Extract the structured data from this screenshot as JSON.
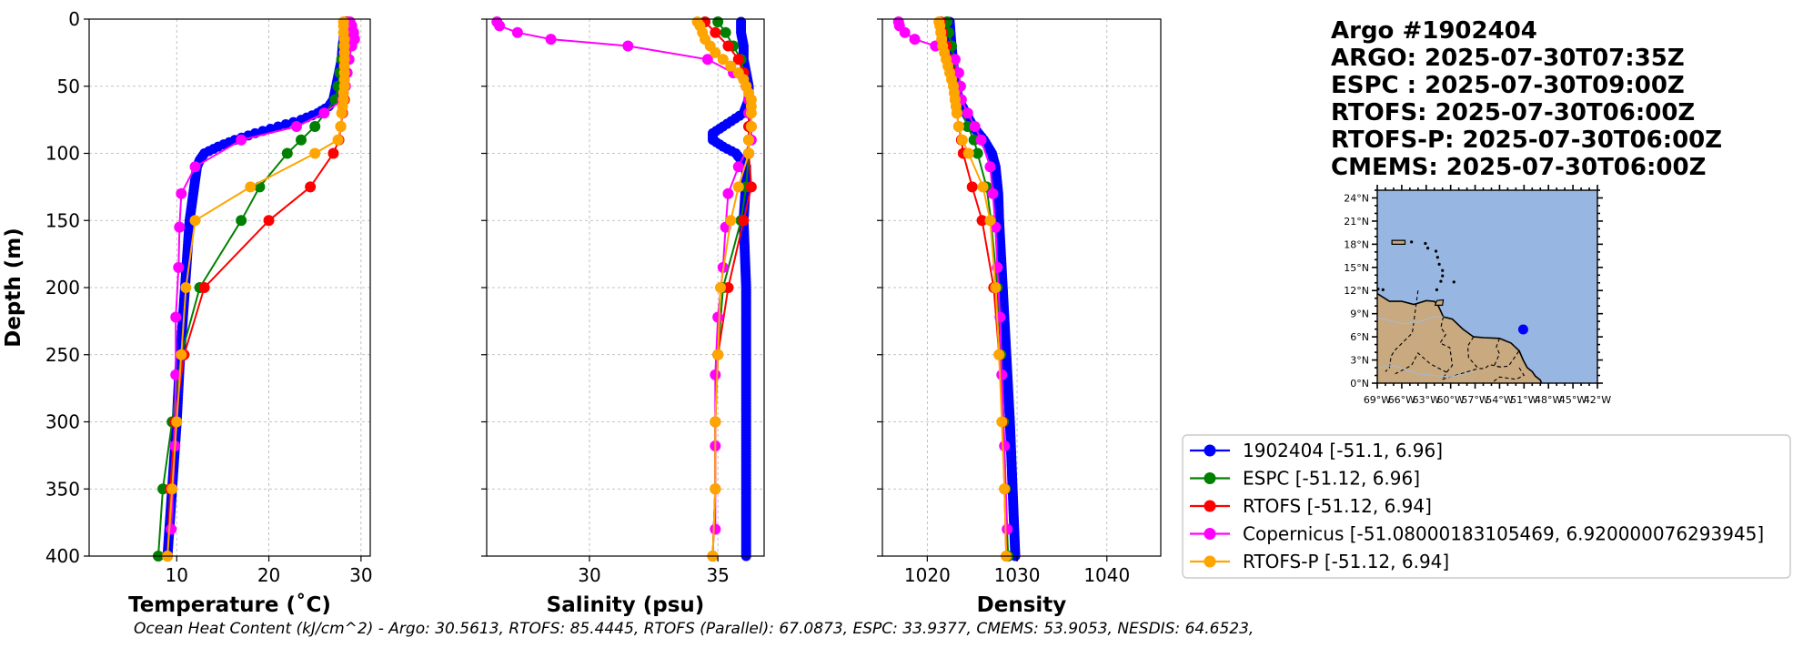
{
  "info": {
    "title": "Argo #1902404",
    "lines": [
      "ARGO: 2025-07-30T07:35Z",
      "ESPC : 2025-07-30T09:00Z",
      "RTOFS: 2025-07-30T06:00Z",
      "RTOFS-P: 2025-07-30T06:00Z",
      "CMEMS: 2025-07-30T06:00Z"
    ]
  },
  "footer": "Ocean Heat Content (kJ/cm^2) - Argo: 30.5613,  RTOFS: 85.4445,  RTOFS (Parallel): 67.0873,  ESPC: 33.9377,  CMEMS: 53.9053,  NESDIS: 64.6523,",
  "legend": [
    {
      "label": "1902404 [-51.1, 6.96]",
      "color": "#0000ff"
    },
    {
      "label": "ESPC [-51.12, 6.96]",
      "color": "#008000"
    },
    {
      "label": "RTOFS [-51.12, 6.94]",
      "color": "#ff0000"
    },
    {
      "label": "Copernicus [-51.08000183105469, 6.920000076293945]",
      "color": "#ff00ff"
    },
    {
      "label": "RTOFS-P [-51.12, 6.94]",
      "color": "#ffa500"
    }
  ],
  "map": {
    "lat_labels": [
      "24°N",
      "21°N",
      "18°N",
      "15°N",
      "12°N",
      "9°N",
      "6°N",
      "3°N",
      "0°N"
    ],
    "lon_labels": [
      "69°W",
      "66°W",
      "63°W",
      "60°W",
      "57°W",
      "54°W",
      "51°W",
      "48°W",
      "45°W",
      "42°W"
    ],
    "lon_range": [
      -69,
      -42
    ],
    "lat_range": [
      0,
      25
    ],
    "float_position": {
      "lon": -51.1,
      "lat": 6.96
    },
    "ocean_color": "#97b6e1",
    "land_color": "#c9a97f",
    "marker_color": "#0000ff"
  },
  "chart_data": [
    {
      "type": "line",
      "title": "",
      "xlabel": "Temperature (˚C)",
      "ylabel": "Depth (m)",
      "xlim": [
        0.5,
        31
      ],
      "ylim": [
        400,
        0
      ],
      "xticks": [
        10,
        20,
        30
      ],
      "yticks": [
        0,
        50,
        100,
        150,
        200,
        250,
        300,
        350,
        400
      ],
      "grid": true,
      "series": [
        {
          "name": "1902404",
          "color": "#0000ff",
          "dense": true,
          "depth": [
            2,
            10,
            20,
            30,
            40,
            50,
            60,
            65,
            70,
            75,
            80,
            85,
            90,
            95,
            100,
            105,
            110,
            120,
            130,
            140,
            150,
            170,
            200,
            230,
            260,
            300,
            340,
            370,
            400
          ],
          "values": [
            28.3,
            28.2,
            28.0,
            27.9,
            27.6,
            27.3,
            27.0,
            26.5,
            25.3,
            23.5,
            21.0,
            18.5,
            16.3,
            14.5,
            13.0,
            12.5,
            12.2,
            12.0,
            11.8,
            11.6,
            11.4,
            11.2,
            10.9,
            10.6,
            10.3,
            10.0,
            9.6,
            9.3,
            9.0
          ]
        },
        {
          "name": "ESPC",
          "color": "#008000",
          "depth": [
            2,
            10,
            20,
            30,
            40,
            50,
            60,
            80,
            90,
            100,
            125,
            150,
            200,
            250,
            300,
            350,
            400
          ],
          "values": [
            28.4,
            28.3,
            28.1,
            27.9,
            27.7,
            27.5,
            27.2,
            25.0,
            23.5,
            22.0,
            19.0,
            17.0,
            12.5,
            10.5,
            9.5,
            8.5,
            8.0
          ]
        },
        {
          "name": "RTOFS",
          "color": "#ff0000",
          "depth": [
            2,
            10,
            20,
            30,
            40,
            50,
            60,
            70,
            80,
            90,
            100,
            125,
            150,
            200,
            250,
            300,
            350,
            400
          ],
          "values": [
            28.5,
            28.6,
            28.6,
            28.5,
            28.4,
            28.3,
            28.2,
            28.0,
            27.8,
            27.6,
            27.0,
            24.5,
            20.0,
            13.0,
            10.8,
            9.8,
            9.3,
            9.0
          ]
        },
        {
          "name": "Copernicus",
          "color": "#ff00ff",
          "depth": [
            2,
            5,
            10,
            15,
            20,
            30,
            40,
            50,
            60,
            70,
            80,
            90,
            110,
            130,
            155,
            185,
            222,
            265,
            318,
            380
          ],
          "values": [
            28.8,
            29.0,
            29.2,
            29.3,
            29.0,
            28.7,
            28.5,
            28.3,
            28.0,
            26.0,
            23.0,
            17.0,
            12.0,
            10.5,
            10.3,
            10.2,
            9.9,
            9.9,
            9.8,
            9.4
          ]
        },
        {
          "name": "RTOFS-P",
          "color": "#ffa500",
          "depth": [
            2,
            5,
            10,
            15,
            20,
            25,
            30,
            35,
            40,
            45,
            50,
            55,
            60,
            65,
            70,
            80,
            90,
            100,
            125,
            150,
            200,
            250,
            300,
            350,
            400
          ],
          "values": [
            28.1,
            28.1,
            28.1,
            28.2,
            28.2,
            28.2,
            28.2,
            28.2,
            28.2,
            28.2,
            28.2,
            28.1,
            28.1,
            28.0,
            27.9,
            27.8,
            27.5,
            25.0,
            18.0,
            12.0,
            11.0,
            10.5,
            10.0,
            9.5,
            9.0
          ]
        }
      ]
    },
    {
      "type": "line",
      "title": "",
      "xlabel": "Salinity (psu)",
      "ylabel": "",
      "xlim": [
        26,
        36.8
      ],
      "ylim": [
        400,
        0
      ],
      "xticks": [
        30,
        35
      ],
      "yticks": [
        0,
        50,
        100,
        150,
        200,
        250,
        300,
        350,
        400
      ],
      "grid": true,
      "series": [
        {
          "name": "1902404",
          "color": "#0000ff",
          "dense": true,
          "depth": [
            2,
            10,
            20,
            30,
            40,
            50,
            60,
            70,
            80,
            85,
            90,
            95,
            100,
            110,
            120,
            150,
            200,
            250,
            300,
            350,
            400
          ],
          "values": [
            35.9,
            35.9,
            36.0,
            36.0,
            36.1,
            36.2,
            36.2,
            36.0,
            35.2,
            34.8,
            34.8,
            35.2,
            35.7,
            36.1,
            36.1,
            36.0,
            36.1,
            36.1,
            36.1,
            36.1,
            36.1
          ]
        },
        {
          "name": "ESPC",
          "color": "#008000",
          "depth": [
            2,
            10,
            20,
            30,
            40,
            50,
            60,
            80,
            90,
            100,
            125,
            150,
            200,
            250,
            300,
            350,
            400
          ],
          "values": [
            35.0,
            35.3,
            35.6,
            35.9,
            36.0,
            36.1,
            36.2,
            36.2,
            36.2,
            36.2,
            36.1,
            35.9,
            35.2,
            35.0,
            34.9,
            34.9,
            34.8
          ]
        },
        {
          "name": "RTOFS",
          "color": "#ff0000",
          "depth": [
            2,
            10,
            20,
            30,
            40,
            50,
            60,
            70,
            80,
            90,
            100,
            125,
            150,
            200,
            250,
            300,
            350,
            400
          ],
          "values": [
            34.5,
            34.9,
            35.4,
            35.8,
            36.0,
            36.1,
            36.2,
            36.2,
            36.2,
            36.2,
            36.2,
            36.3,
            36.0,
            35.4,
            35.0,
            34.9,
            34.9,
            34.8
          ]
        },
        {
          "name": "Copernicus",
          "color": "#ff00ff",
          "depth": [
            2,
            5,
            10,
            15,
            20,
            30,
            40,
            50,
            60,
            70,
            80,
            90,
            110,
            130,
            155,
            185,
            222,
            265,
            318,
            380
          ],
          "values": [
            26.4,
            26.5,
            27.2,
            28.5,
            31.5,
            34.6,
            35.6,
            36.1,
            36.2,
            36.2,
            36.3,
            36.3,
            35.8,
            35.4,
            35.3,
            35.2,
            35.0,
            34.9,
            34.9,
            34.9
          ]
        },
        {
          "name": "RTOFS-P",
          "color": "#ffa500",
          "depth": [
            2,
            5,
            10,
            15,
            20,
            25,
            30,
            35,
            40,
            45,
            50,
            55,
            60,
            65,
            70,
            80,
            90,
            100,
            125,
            150,
            200,
            250,
            300,
            350,
            400
          ],
          "values": [
            34.2,
            34.3,
            34.4,
            34.5,
            34.7,
            34.9,
            35.2,
            35.5,
            35.8,
            36.0,
            36.1,
            36.2,
            36.3,
            36.3,
            36.3,
            36.3,
            36.2,
            36.2,
            35.8,
            35.5,
            35.1,
            35.0,
            34.9,
            34.9,
            34.8
          ]
        }
      ]
    },
    {
      "type": "line",
      "title": "",
      "xlabel": "Density",
      "ylabel": "",
      "xlim": [
        1015,
        1046
      ],
      "ylim": [
        400,
        0
      ],
      "xticks": [
        1020,
        1030,
        1040
      ],
      "yticks": [
        0,
        50,
        100,
        150,
        200,
        250,
        300,
        350,
        400
      ],
      "grid": true,
      "series": [
        {
          "name": "1902404",
          "color": "#0000ff",
          "dense": true,
          "depth": [
            2,
            20,
            40,
            60,
            70,
            80,
            90,
            100,
            110,
            130,
            150,
            200,
            250,
            300,
            350,
            400
          ],
          "values": [
            1022.5,
            1022.7,
            1023.0,
            1023.5,
            1024.3,
            1025.1,
            1026.3,
            1027.2,
            1027.6,
            1027.9,
            1028.0,
            1028.4,
            1028.8,
            1029.2,
            1029.5,
            1029.8
          ]
        },
        {
          "name": "ESPC",
          "color": "#008000",
          "depth": [
            2,
            10,
            20,
            30,
            40,
            50,
            60,
            80,
            90,
            100,
            125,
            150,
            200,
            250,
            300,
            350,
            400
          ],
          "values": [
            1022.2,
            1022.4,
            1022.7,
            1023.0,
            1023.2,
            1023.3,
            1023.4,
            1024.5,
            1025.2,
            1025.6,
            1026.6,
            1027.1,
            1027.8,
            1028.2,
            1028.5,
            1028.7,
            1029.0
          ]
        },
        {
          "name": "RTOFS",
          "color": "#ff0000",
          "depth": [
            2,
            10,
            20,
            30,
            40,
            50,
            60,
            70,
            80,
            90,
            100,
            125,
            150,
            200,
            250,
            300,
            350,
            400
          ],
          "values": [
            1021.5,
            1021.7,
            1022.1,
            1022.5,
            1022.8,
            1023.0,
            1023.1,
            1023.3,
            1023.5,
            1023.8,
            1024.0,
            1025.0,
            1026.1,
            1027.4,
            1028.0,
            1028.4,
            1028.6,
            1028.8
          ]
        },
        {
          "name": "Copernicus",
          "color": "#ff00ff",
          "depth": [
            2,
            5,
            10,
            15,
            20,
            30,
            40,
            50,
            60,
            70,
            80,
            90,
            110,
            130,
            155,
            185,
            222,
            265,
            318,
            380
          ],
          "values": [
            1016.8,
            1016.9,
            1017.5,
            1018.6,
            1020.9,
            1023.1,
            1023.5,
            1023.7,
            1023.8,
            1024.5,
            1025.3,
            1026.0,
            1027.0,
            1027.3,
            1027.6,
            1027.8,
            1028.1,
            1028.3,
            1028.6,
            1028.9
          ]
        },
        {
          "name": "RTOFS-P",
          "color": "#ffa500",
          "depth": [
            2,
            5,
            10,
            15,
            20,
            25,
            30,
            35,
            40,
            45,
            50,
            55,
            60,
            65,
            70,
            80,
            90,
            100,
            125,
            150,
            200,
            250,
            300,
            350,
            400
          ],
          "values": [
            1021.3,
            1021.4,
            1021.5,
            1021.6,
            1021.7,
            1021.9,
            1022.1,
            1022.3,
            1022.5,
            1022.7,
            1022.9,
            1023.0,
            1023.1,
            1023.2,
            1023.3,
            1023.5,
            1023.9,
            1024.6,
            1026.2,
            1027.0,
            1027.6,
            1028.0,
            1028.3,
            1028.6,
            1028.8
          ]
        }
      ]
    }
  ]
}
